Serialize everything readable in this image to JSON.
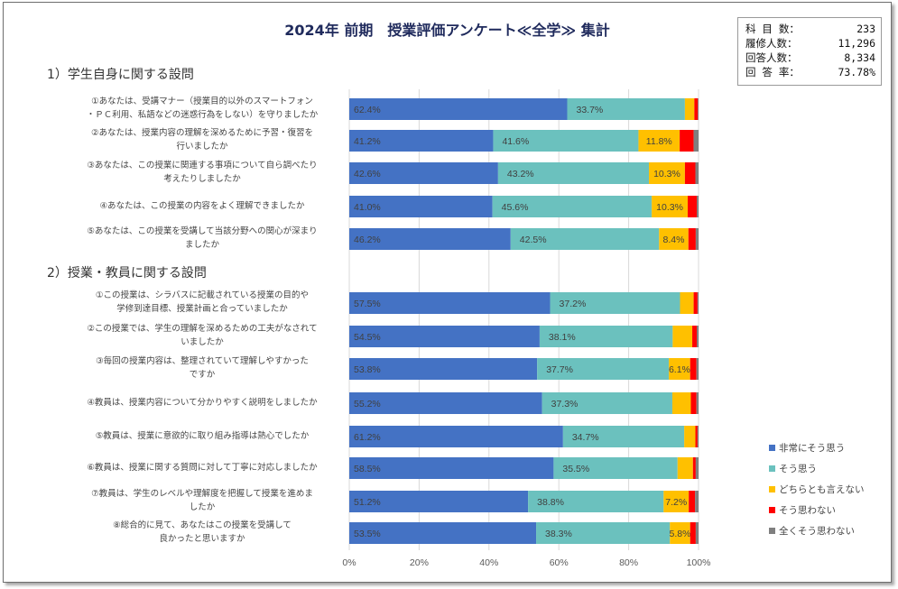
{
  "title": "2024年 前期　授業評価アンケート≪全学≫ 集計",
  "stats": [
    {
      "label": "科 目 数：",
      "value": "233"
    },
    {
      "label": "履修人数：",
      "value": "11,296"
    },
    {
      "label": "回答人数：",
      "value": "8,334"
    },
    {
      "label": "回 答 率：",
      "value": "73.78%"
    }
  ],
  "sections": [
    {
      "label": "1）学生自身に関する設問"
    },
    {
      "label": "2）授業・教員に関する設問"
    }
  ],
  "chart_data": {
    "type": "bar",
    "orientation": "horizontal",
    "stacked": "100%",
    "title": "2024年 前期　授業評価アンケート≪全学≫ 集計",
    "xlabel": "",
    "ylabel": "",
    "xlim": [
      0,
      100
    ],
    "xticks": [
      "0%",
      "20%",
      "40%",
      "60%",
      "80%",
      "100%"
    ],
    "grid": true,
    "legend_position": "bottom-right",
    "colors": [
      "#4472c4",
      "#6bc1be",
      "#ffc000",
      "#ff0000",
      "#7f7f7f"
    ],
    "legend": [
      "非常にそう思う",
      "そう思う",
      "どちらとも言えない",
      "そう思わない",
      "全くそう思わない"
    ],
    "categories": [
      {
        "section": 0,
        "label": [
          "①あなたは、受講マナー（授業目的以外のスマートフォン",
          "・ＰＣ利用、私語などの迷惑行為をしない）を守りましたか"
        ]
      },
      {
        "section": 0,
        "label": [
          "②あなたは、授業内容の理解を深めるために予習・復習を",
          "行いましたか"
        ]
      },
      {
        "section": 0,
        "label": [
          "③あなたは、この授業に関連する事項について自ら調べたり",
          "考えたりしましたか"
        ]
      },
      {
        "section": 0,
        "label": [
          "④あなたは、この授業の内容をよく理解できましたか"
        ]
      },
      {
        "section": 0,
        "label": [
          "⑤あなたは、この授業を受講して当該分野への関心が深まり",
          "ましたか"
        ]
      },
      {
        "section": 1,
        "label": [
          "①この授業は、シラバスに記載されている授業の目的や",
          "学修到達目標、授業計画と合っていましたか"
        ]
      },
      {
        "section": 1,
        "label": [
          "②この授業では、学生の理解を深めるための工夫がなされて",
          "いましたか"
        ]
      },
      {
        "section": 1,
        "label": [
          "③毎回の授業内容は、整理されていて理解しやすかった",
          "ですか"
        ]
      },
      {
        "section": 1,
        "label": [
          "④教員は、授業内容について分かりやすく説明をしましたか"
        ]
      },
      {
        "section": 1,
        "label": [
          "⑤教員は、授業に意欲的に取り組み指導は熱心でしたか"
        ]
      },
      {
        "section": 1,
        "label": [
          "⑥教員は、授業に関する質問に対して丁寧に対応しましたか"
        ]
      },
      {
        "section": 1,
        "label": [
          "⑦教員は、学生のレベルや理解度を把握して授業を進めま",
          "したか"
        ]
      },
      {
        "section": 1,
        "label": [
          "⑧総合的に見て、あなたはこの授業を受講して",
          "良かったと思いますか"
        ]
      }
    ],
    "series": [
      {
        "name": "非常にそう思う",
        "values": [
          62.4,
          41.2,
          42.6,
          41.0,
          46.2,
          57.5,
          54.5,
          53.8,
          55.2,
          61.2,
          58.5,
          51.2,
          53.5
        ],
        "labels_shown": [
          true,
          true,
          true,
          true,
          true,
          true,
          true,
          true,
          true,
          true,
          true,
          true,
          true
        ]
      },
      {
        "name": "そう思う",
        "values": [
          33.7,
          41.6,
          43.2,
          45.6,
          42.5,
          37.2,
          38.1,
          37.7,
          37.3,
          34.7,
          35.5,
          38.8,
          38.3
        ],
        "labels_shown": [
          true,
          true,
          true,
          true,
          true,
          true,
          true,
          true,
          true,
          true,
          true,
          true,
          true
        ]
      },
      {
        "name": "どちらとも言えない",
        "values": [
          2.7,
          11.8,
          10.3,
          10.3,
          8.4,
          3.9,
          5.6,
          6.1,
          5.3,
          3.2,
          4.4,
          7.2,
          5.8
        ],
        "labels_shown": [
          false,
          true,
          true,
          true,
          true,
          false,
          false,
          true,
          false,
          false,
          false,
          true,
          true
        ]
      },
      {
        "name": "そう思わない",
        "values": [
          1.0,
          4.0,
          3.0,
          2.6,
          2.1,
          1.1,
          1.3,
          1.8,
          1.6,
          0.6,
          0.8,
          1.8,
          1.6
        ],
        "labels_shown": [
          false,
          false,
          false,
          false,
          false,
          false,
          false,
          false,
          false,
          false,
          false,
          false,
          false
        ]
      },
      {
        "name": "全くそう思わない",
        "values": [
          0.2,
          1.4,
          0.9,
          0.5,
          0.8,
          0.3,
          0.5,
          0.6,
          0.6,
          0.3,
          0.8,
          1.0,
          0.8
        ],
        "labels_shown": [
          false,
          false,
          false,
          false,
          false,
          false,
          false,
          false,
          false,
          false,
          false,
          false,
          false
        ]
      }
    ]
  }
}
